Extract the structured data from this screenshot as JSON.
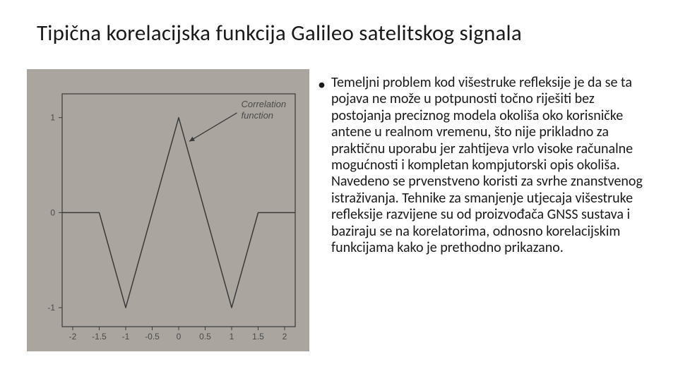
{
  "title": "Tipična korelacijska funkcija Galileo satelitskog signala",
  "chart": {
    "type": "line",
    "annotation": "Correlation function",
    "annotation_fontsize": 13,
    "annotation_color": "#4a4a4a",
    "background_color": "#aaa59e",
    "axis_color": "#3a3a3a",
    "line_color": "#3a3a3a",
    "line_width": 1.5,
    "tick_font_color": "#4a4a4a",
    "tick_fontsize": 12,
    "xlim": [
      -2.2,
      2.2
    ],
    "ylim": [
      -1.2,
      1.25
    ],
    "xticks": [
      -2,
      -1.5,
      -1,
      -0.5,
      0,
      0.5,
      1,
      1.5,
      2
    ],
    "yticks": [
      -1,
      0,
      1
    ],
    "arrow_from": [
      1.1,
      1.05
    ],
    "arrow_to": [
      0.2,
      0.75
    ],
    "data": [
      [
        -2.2,
        0
      ],
      [
        -1.5,
        0
      ],
      [
        -1.0,
        -1.0
      ],
      [
        -0.5,
        0
      ],
      [
        0.0,
        1.0
      ],
      [
        0.5,
        0
      ],
      [
        1.0,
        -1.0
      ],
      [
        1.5,
        0
      ],
      [
        2.2,
        0
      ]
    ]
  },
  "body_text": "Temeljni problem kod višestruke refleksije je da se ta pojava ne može u potpunosti točno riješiti bez postojanja preciznog modela okoliša oko korisničke antene u realnom vremenu, što nije prikladno za praktičnu uporabu jer zahtijeva vrlo visoke računalne mogućnosti i kompletan kompjutorski opis okoliša. Navedeno se prvenstveno koristi za svrhe znanstvenog istraživanja. Tehnike za smanjenje utjecaja višestruke refleksije razvijene su od proizvođača GNSS sustava i baziraju se na korelatorima, odnosno korelacijskim funkcijama kako je prethodno prikazano."
}
